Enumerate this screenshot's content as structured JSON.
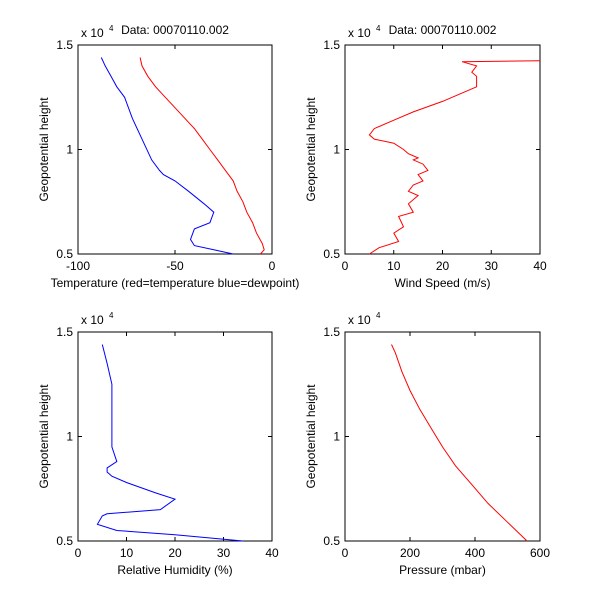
{
  "chart_data": [
    {
      "type": "line",
      "title": "Data: 00070110.002",
      "xlabel": "Temperature (red=temperature blue=dewpoint)",
      "ylabel": "Geopotential height",
      "y_exponent_label": "x 10",
      "y_exponent_power": "4",
      "xlim": [
        -100,
        0
      ],
      "ylim": [
        5000,
        15000
      ],
      "xticks": [
        -100,
        -50,
        0
      ],
      "yticks": [
        0.5,
        1,
        1.5
      ],
      "grid": false,
      "series": [
        {
          "color": "#ff0000",
          "x": [
            -6,
            -4,
            -5,
            -8,
            -10,
            -13,
            -15,
            -18,
            -20,
            -24,
            -28,
            -32,
            -36,
            -40,
            -45,
            -50,
            -55,
            -60,
            -64,
            -67,
            -68
          ],
          "y": [
            5000,
            5200,
            5500,
            6000,
            6500,
            7000,
            7500,
            8000,
            8500,
            9000,
            9500,
            10000,
            10500,
            11000,
            11500,
            12000,
            12500,
            13000,
            13500,
            14000,
            14400
          ]
        },
        {
          "color": "#0000ff",
          "x": [
            -20,
            -30,
            -40,
            -42,
            -40,
            -32,
            -30,
            -35,
            -43,
            -50,
            -56,
            -58,
            -62,
            -67,
            -72,
            -76,
            -80,
            -83,
            -86,
            -88
          ],
          "y": [
            5000,
            5200,
            5400,
            5700,
            6200,
            6500,
            7000,
            7400,
            8000,
            8500,
            8800,
            9000,
            9500,
            10500,
            11500,
            12500,
            13000,
            13500,
            14000,
            14400
          ]
        }
      ]
    },
    {
      "type": "line",
      "title": "Data: 00070110.002",
      "xlabel": "Wind Speed (m/s)",
      "ylabel": "Geopotential height",
      "y_exponent_label": "x 10",
      "y_exponent_power": "4",
      "xlim": [
        0,
        40
      ],
      "ylim": [
        5000,
        15000
      ],
      "xticks": [
        0,
        10,
        20,
        30,
        40
      ],
      "yticks": [
        0.5,
        1,
        1.5
      ],
      "grid": false,
      "series": [
        {
          "color": "#ff0000",
          "x": [
            5,
            7,
            11,
            10,
            12,
            11,
            14,
            13,
            15,
            13,
            14,
            16,
            15,
            17,
            16,
            14,
            15,
            13,
            12,
            10,
            6,
            5,
            6,
            10,
            14,
            20,
            24,
            27,
            27,
            26,
            27,
            24,
            40
          ],
          "y": [
            5000,
            5300,
            5600,
            6000,
            6300,
            6800,
            7000,
            7400,
            7800,
            8000,
            8300,
            8500,
            8800,
            9000,
            9300,
            9500,
            9600,
            9800,
            10000,
            10300,
            10500,
            10700,
            11000,
            11400,
            11800,
            12300,
            12700,
            13000,
            13500,
            13700,
            14000,
            14200,
            14250
          ]
        }
      ]
    },
    {
      "type": "line",
      "xlabel": "Relative Humidity (%)",
      "ylabel": "Geopotential height",
      "y_exponent_label": "x 10",
      "y_exponent_power": "4",
      "xlim": [
        0,
        40
      ],
      "ylim": [
        5000,
        15000
      ],
      "xticks": [
        0,
        10,
        20,
        30,
        40
      ],
      "yticks": [
        0.5,
        1,
        1.5
      ],
      "grid": false,
      "series": [
        {
          "color": "#0000ff",
          "x": [
            34,
            20,
            8,
            4,
            5,
            6,
            17,
            20,
            16,
            10,
            7,
            6,
            6,
            8,
            7,
            7,
            7,
            6,
            5
          ],
          "y": [
            5000,
            5300,
            5500,
            5800,
            6200,
            6300,
            6500,
            7000,
            7300,
            7800,
            8100,
            8300,
            8500,
            8800,
            9500,
            11000,
            12500,
            13500,
            14400
          ]
        }
      ]
    },
    {
      "type": "line",
      "xlabel": "Pressure (mbar)",
      "ylabel": "Geopotential height",
      "y_exponent_label": "x 10",
      "y_exponent_power": "4",
      "xlim": [
        0,
        600
      ],
      "ylim": [
        5000,
        15000
      ],
      "xticks": [
        0,
        200,
        400,
        600
      ],
      "yticks": [
        0.5,
        1,
        1.5
      ],
      "grid": false,
      "series": [
        {
          "color": "#ff0000",
          "x": [
            560,
            500,
            440,
            390,
            340,
            300,
            265,
            230,
            200,
            175,
            155,
            143
          ],
          "y": [
            5000,
            5900,
            6800,
            7700,
            8600,
            9500,
            10400,
            11300,
            12200,
            13100,
            14000,
            14400
          ]
        }
      ]
    }
  ]
}
